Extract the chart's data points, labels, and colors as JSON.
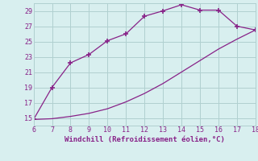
{
  "xlabel": "Windchill (Refroidissement éolien,°C)",
  "x_upper": [
    6,
    7,
    8,
    9,
    10,
    11,
    12,
    13,
    14,
    15,
    16,
    17,
    18
  ],
  "y_upper": [
    14.8,
    19.0,
    22.2,
    23.3,
    25.1,
    26.0,
    28.3,
    29.0,
    29.8,
    29.1,
    29.1,
    27.0,
    26.5
  ],
  "x_lower": [
    6,
    7,
    8,
    9,
    10,
    11,
    12,
    13,
    14,
    15,
    16,
    17,
    18
  ],
  "y_lower": [
    14.8,
    14.9,
    15.2,
    15.6,
    16.2,
    17.1,
    18.2,
    19.5,
    21.0,
    22.5,
    24.0,
    25.3,
    26.5
  ],
  "line_color": "#882288",
  "marker": "+",
  "bg_color": "#d8efef",
  "grid_color": "#b0d0d0",
  "text_color": "#882288",
  "xlim": [
    6,
    18
  ],
  "ylim": [
    14,
    30
  ],
  "xticks": [
    6,
    7,
    8,
    9,
    10,
    11,
    12,
    13,
    14,
    15,
    16,
    17,
    18
  ],
  "yticks": [
    15,
    17,
    19,
    21,
    23,
    25,
    27,
    29
  ]
}
